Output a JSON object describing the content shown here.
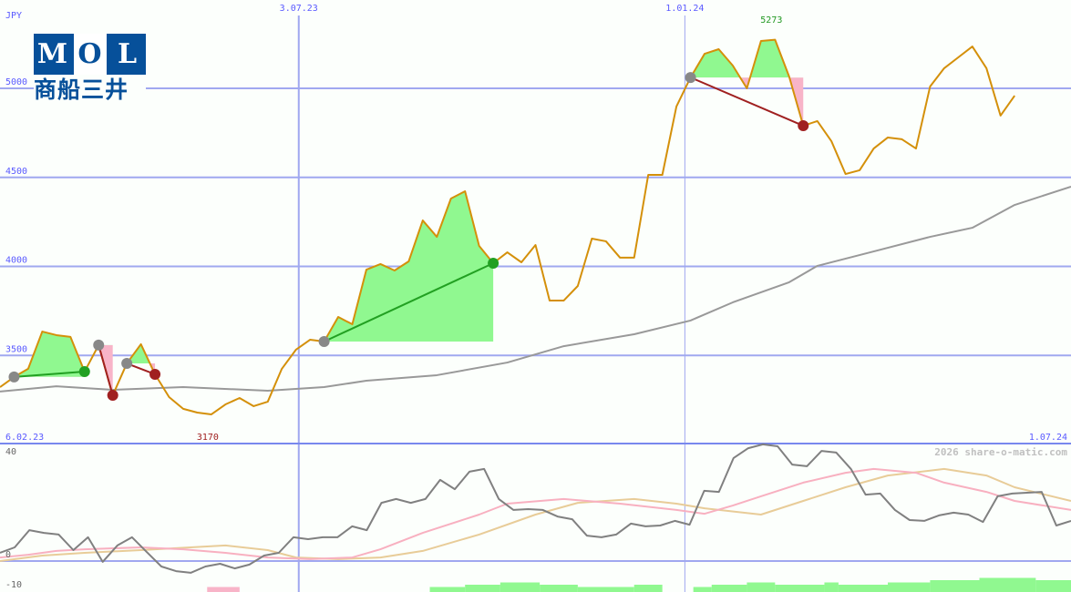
{
  "currency": "JPY",
  "logo": {
    "letters": [
      "M",
      "O",
      "L"
    ],
    "japanese": "商船三井"
  },
  "watermark": "2026 share-o-matic.com",
  "colors": {
    "price": "#d4900a",
    "ma": "#999999",
    "grid": "#a0a8f0",
    "axis_text": "#5a5aff",
    "gain": "#90f890",
    "loss": "#f8b4c8",
    "win_line": "#22a022",
    "loss_line": "#a02020",
    "momentum": "#808080",
    "mom_ma1": "#f8b0c0",
    "mom_ma2": "#e8cc98"
  },
  "chart_data": [
    {
      "type": "line",
      "ylim": [
        3000,
        5450
      ],
      "y_ticks": [
        "3500",
        "4000",
        "4500",
        "5000"
      ],
      "x_ticks": [
        {
          "label": "6.02.23",
          "week": 0
        },
        {
          "label": "3.07.23",
          "week": 21.2
        },
        {
          "label": "1.01.24",
          "week": 48.6
        },
        {
          "label": "1.07.24",
          "week": 76
        }
      ],
      "annotations": {
        "low": "3170",
        "high": "5273"
      },
      "series": [
        {
          "key": "price",
          "values": [
            3322,
            3379,
            3425,
            3634,
            3614,
            3604,
            3409,
            3558,
            3276,
            3455,
            3563,
            3394,
            3266,
            3200,
            3179,
            3169,
            3225,
            3261,
            3215,
            3240,
            3425,
            3532,
            3588,
            3578,
            3716,
            3675,
            3982,
            4013,
            3977,
            4028,
            4258,
            4166,
            4381,
            4422,
            4115,
            4018,
            4079,
            4023,
            4120,
            3808,
            3808,
            3890,
            4156,
            4141,
            4049,
            4049,
            4514,
            4514,
            4898,
            5061,
            5194,
            5220,
            5128,
            5000,
            5266,
            5273,
            5066,
            4790,
            4816,
            4703,
            4519,
            4540,
            4662,
            4724,
            4714,
            4662,
            5010,
            5113,
            5174,
            5235,
            5113,
            4847,
            4959
          ]
        },
        {
          "key": "ma",
          "points": [
            [
              0,
              3297
            ],
            [
              4,
              3327
            ],
            [
              8,
              3307
            ],
            [
              13,
              3322
            ],
            [
              19,
              3302
            ],
            [
              23,
              3322
            ],
            [
              26,
              3358
            ],
            [
              31,
              3389
            ],
            [
              36,
              3460
            ],
            [
              40,
              3552
            ],
            [
              45,
              3619
            ],
            [
              49,
              3696
            ],
            [
              52,
              3798
            ],
            [
              56,
              3911
            ],
            [
              58,
              4003
            ],
            [
              62,
              4084
            ],
            [
              66,
              4166
            ],
            [
              69,
              4217
            ],
            [
              72,
              4345
            ],
            [
              76,
              4448
            ]
          ]
        }
      ],
      "trades": [
        {
          "entry": 1,
          "exit": 6,
          "result": "win"
        },
        {
          "entry": 7,
          "exit": 8,
          "result": "loss"
        },
        {
          "entry": 9,
          "exit": 11,
          "result": "loss"
        },
        {
          "entry": 23,
          "exit": 35,
          "result": "win"
        },
        {
          "entry": 49,
          "exit": 57,
          "result": "loss"
        }
      ]
    },
    {
      "type": "line",
      "ylim": [
        -11,
        45
      ],
      "y_ticks": [
        "40",
        "0",
        "-10"
      ],
      "series": [
        {
          "key": "momentum",
          "values": [
            3,
            5,
            11.3,
            10.3,
            9.7,
            4,
            8.7,
            -0.3,
            5.7,
            8.7,
            3.3,
            -2,
            -3.7,
            -4.3,
            -2,
            -1,
            -2.7,
            -1.3,
            2,
            3,
            8.7,
            8,
            8.7,
            8.7,
            12.7,
            11.3,
            21.3,
            22.7,
            21.3,
            22.7,
            29.7,
            26.3,
            32.7,
            33.7,
            22.7,
            18.7,
            19,
            18.7,
            16.3,
            15.3,
            9.3,
            8.7,
            9.7,
            13.7,
            12.7,
            13,
            14.7,
            13.3,
            25.7,
            25.3,
            37.7,
            41.3,
            42.7,
            42,
            35.3,
            34.7,
            40.3,
            39.7,
            33.7,
            24.3,
            24.7,
            18.7,
            15,
            14.7,
            16.7,
            17.7,
            17,
            14.3,
            23.7,
            24.7,
            25,
            25.3,
            13,
            14.7
          ]
        },
        {
          "key": "mom_ma1",
          "points": [
            [
              0,
              1.3
            ],
            [
              2,
              2.3
            ],
            [
              4,
              3.7
            ],
            [
              6,
              4.3
            ],
            [
              10,
              5
            ],
            [
              13,
              4.3
            ],
            [
              16,
              3
            ],
            [
              19,
              1.3
            ],
            [
              22,
              0.7
            ],
            [
              25,
              1.3
            ],
            [
              27,
              4.3
            ],
            [
              30,
              10.3
            ],
            [
              34,
              17
            ],
            [
              36,
              21
            ],
            [
              40,
              22.7
            ],
            [
              44,
              21
            ],
            [
              48,
              18.7
            ],
            [
              50,
              17.3
            ],
            [
              52,
              20.3
            ],
            [
              54,
              23.7
            ],
            [
              57,
              28.7
            ],
            [
              60,
              32.3
            ],
            [
              62,
              33.7
            ],
            [
              65,
              32.3
            ],
            [
              67,
              28.7
            ],
            [
              70,
              25.3
            ],
            [
              72,
              22
            ],
            [
              76,
              18.7
            ]
          ]
        },
        {
          "key": "mom_ma2",
          "points": [
            [
              0,
              0
            ],
            [
              3,
              2
            ],
            [
              6,
              3
            ],
            [
              10,
              4
            ],
            [
              16,
              5.7
            ],
            [
              19,
              4
            ],
            [
              21,
              1.3
            ],
            [
              24,
              0.7
            ],
            [
              27,
              1.3
            ],
            [
              30,
              3.7
            ],
            [
              34,
              9.7
            ],
            [
              38,
              17
            ],
            [
              41,
              21.3
            ],
            [
              45,
              22.7
            ],
            [
              48,
              21
            ],
            [
              50,
              19.3
            ],
            [
              54,
              17
            ],
            [
              57,
              22
            ],
            [
              60,
              27
            ],
            [
              63,
              31.3
            ],
            [
              67,
              33.7
            ],
            [
              70,
              31.3
            ],
            [
              72,
              27
            ],
            [
              76,
              22
            ]
          ]
        }
      ],
      "histogram": [
        {
          "from": 14.7,
          "to": 17,
          "level": 1,
          "color": "loss"
        },
        {
          "from": 30.5,
          "to": 33,
          "level": 1,
          "color": "gain"
        },
        {
          "from": 33,
          "to": 35.5,
          "level": 2,
          "color": "gain"
        },
        {
          "from": 35.5,
          "to": 38.3,
          "level": 3,
          "color": "gain"
        },
        {
          "from": 38.3,
          "to": 41,
          "level": 2,
          "color": "gain"
        },
        {
          "from": 41,
          "to": 45,
          "level": 1,
          "color": "gain"
        },
        {
          "from": 45,
          "to": 47,
          "level": 2,
          "color": "gain"
        },
        {
          "from": 49.2,
          "to": 50.5,
          "level": 1,
          "color": "gain"
        },
        {
          "from": 50.5,
          "to": 53,
          "level": 2,
          "color": "gain"
        },
        {
          "from": 53,
          "to": 55,
          "level": 3,
          "color": "gain"
        },
        {
          "from": 55,
          "to": 58.5,
          "level": 2,
          "color": "gain"
        },
        {
          "from": 58.5,
          "to": 59.5,
          "level": 3,
          "color": "gain"
        },
        {
          "from": 59.5,
          "to": 63,
          "level": 2,
          "color": "gain"
        },
        {
          "from": 63,
          "to": 66,
          "level": 3,
          "color": "gain"
        },
        {
          "from": 66,
          "to": 69.5,
          "level": 4,
          "color": "gain"
        },
        {
          "from": 69.5,
          "to": 73.5,
          "level": 5,
          "color": "gain"
        },
        {
          "from": 73.5,
          "to": 76,
          "level": 4,
          "color": "gain"
        }
      ]
    }
  ]
}
